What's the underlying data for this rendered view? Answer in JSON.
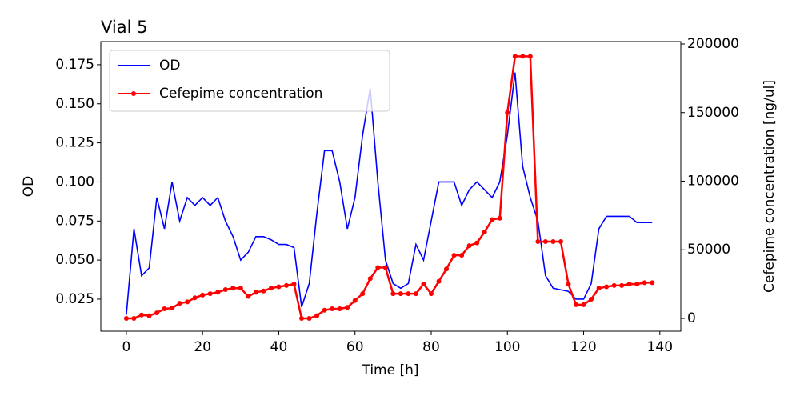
{
  "chart_data": {
    "type": "line",
    "title": "Vial 5",
    "xlabel": "Time [h]",
    "ylabel": "OD",
    "y2label": "Cefepime concentration [ng/ul]",
    "x": [
      0,
      2,
      4,
      6,
      8,
      10,
      12,
      14,
      16,
      18,
      20,
      22,
      24,
      26,
      28,
      30,
      32,
      34,
      36,
      38,
      40,
      42,
      44,
      46,
      48,
      50,
      52,
      54,
      56,
      58,
      60,
      62,
      64,
      66,
      68,
      70,
      72,
      74,
      76,
      78,
      80,
      82,
      84,
      86,
      88,
      90,
      92,
      94,
      96,
      98,
      100,
      102,
      104,
      106,
      108,
      110,
      112,
      114,
      116,
      118,
      120,
      122,
      124,
      126,
      128,
      130,
      132,
      134,
      136,
      138
    ],
    "series": [
      {
        "name": "OD",
        "color": "#0000ff",
        "marker": false,
        "values": [
          0.015,
          0.07,
          0.04,
          0.045,
          0.09,
          0.07,
          0.1,
          0.075,
          0.09,
          0.085,
          0.09,
          0.085,
          0.09,
          0.075,
          0.065,
          0.05,
          0.055,
          0.065,
          0.065,
          0.063,
          0.06,
          0.06,
          0.058,
          0.02,
          0.035,
          0.08,
          0.12,
          0.12,
          0.1,
          0.07,
          0.09,
          0.13,
          0.16,
          0.1,
          0.05,
          0.035,
          0.032,
          0.035,
          0.06,
          0.05,
          0.075,
          0.1,
          0.1,
          0.1,
          0.085,
          0.095,
          0.1,
          0.095,
          0.09,
          0.1,
          0.13,
          0.17,
          0.11,
          0.09,
          0.075,
          0.04,
          0.032,
          0.031,
          0.03,
          0.025,
          0.025,
          0.035,
          0.07,
          0.078,
          0.078,
          0.078,
          0.078,
          0.074,
          0.074,
          0.074
        ]
      },
      {
        "name": "Cefepime concentration",
        "color": "#ff0000",
        "marker": true,
        "axis": "y2",
        "values": [
          0,
          0,
          2500,
          2000,
          4000,
          7000,
          7500,
          11000,
          12000,
          15000,
          17000,
          18000,
          19000,
          21000,
          22000,
          22000,
          16000,
          19000,
          20000,
          22000,
          23000,
          24000,
          25000,
          0,
          0,
          2000,
          6000,
          7000,
          7000,
          8000,
          13000,
          18000,
          29000,
          37000,
          37000,
          18000,
          18000,
          18000,
          18000,
          25000,
          18000,
          27000,
          36000,
          46000,
          46000,
          53000,
          55000,
          63000,
          72000,
          73000,
          150000,
          191000,
          191000,
          191000,
          56000,
          56000,
          56000,
          56000,
          25000,
          10000,
          10000,
          14000,
          22000,
          23000,
          24000,
          24000,
          25000,
          25000,
          26000,
          26000
        ]
      }
    ],
    "xlim": [
      -6.7,
      145.5
    ],
    "xticks": [
      0,
      20,
      40,
      60,
      80,
      100,
      120,
      140
    ],
    "ylim": [
      0.0045,
      0.1898
    ],
    "yticks": [
      0.025,
      {
        "value": 0.05,
        "label": "0.050"
      },
      0.075,
      {
        "value": 0.1,
        "label": "0.100"
      },
      0.125,
      {
        "value": 0.15,
        "label": "0.150"
      },
      0.175
    ],
    "y2lim": [
      -9330,
      201750
    ],
    "y2ticks": [
      0,
      50000,
      100000,
      150000,
      200000
    ],
    "legend": "upper left"
  }
}
